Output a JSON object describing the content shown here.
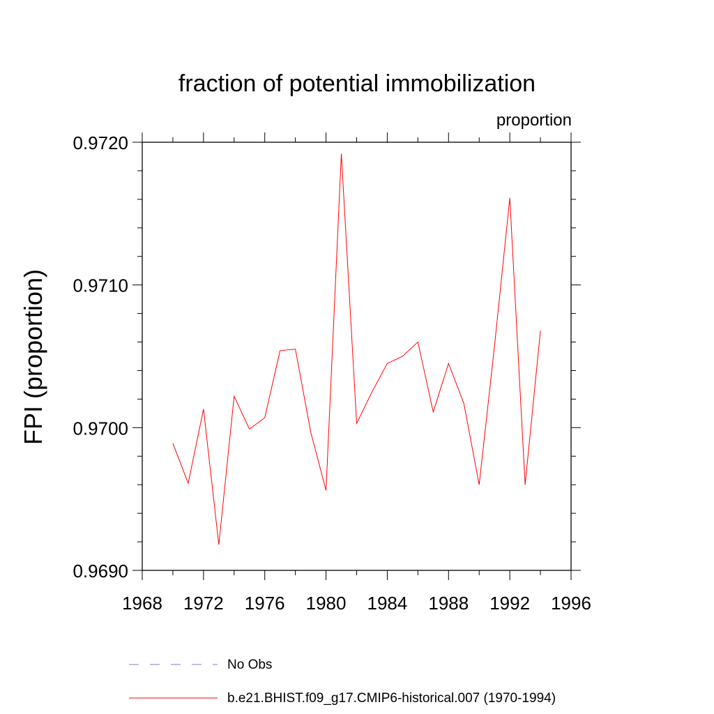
{
  "chart_data": {
    "type": "line",
    "title": "fraction of potential immobilization",
    "units_label": "proportion",
    "ylabel": "FPI  (proportion)",
    "xlabel": "",
    "xlim": [
      1968,
      1996
    ],
    "ylim": [
      0.969,
      0.972
    ],
    "x_ticks": [
      1968,
      1972,
      1976,
      1980,
      1984,
      1988,
      1992,
      1996
    ],
    "x_tick_labels": [
      "1968",
      "1972",
      "1976",
      "1980",
      "1984",
      "1988",
      "1992",
      "1996"
    ],
    "x_minor_step": 2,
    "y_ticks": [
      0.969,
      0.97,
      0.971,
      0.972
    ],
    "y_tick_labels": [
      "0.9690",
      "0.9700",
      "0.9710",
      "0.9720"
    ],
    "y_minor_step": 0.0002,
    "grid": false,
    "legend_placement": "bottom",
    "series": [
      {
        "name": "b.e21.BHIST.f09_g17.CMIP6-historical.007 (1970-1994)",
        "color": "#ff0000",
        "style": "solid",
        "x": [
          1970,
          1971,
          1972,
          1973,
          1974,
          1975,
          1976,
          1977,
          1978,
          1979,
          1980,
          1981,
          1982,
          1983,
          1984,
          1985,
          1986,
          1987,
          1988,
          1989,
          1990,
          1991,
          1992,
          1993,
          1994
        ],
        "values": [
          0.96989,
          0.96961,
          0.97013,
          0.96918,
          0.97022,
          0.96999,
          0.97007,
          0.97054,
          0.97055,
          0.96997,
          0.96956,
          0.97192,
          0.97003,
          0.97025,
          0.97045,
          0.9705,
          0.9706,
          0.97011,
          0.97045,
          0.97017,
          0.9696,
          0.97057,
          0.97161,
          0.9696,
          0.97068
        ]
      }
    ],
    "legend": [
      {
        "label": "No Obs",
        "color": "#7b7bc8",
        "style": "dashed"
      },
      {
        "label": "b.e21.BHIST.f09_g17.CMIP6-historical.007 (1970-1994)",
        "color": "#ff0000",
        "style": "solid"
      }
    ]
  }
}
